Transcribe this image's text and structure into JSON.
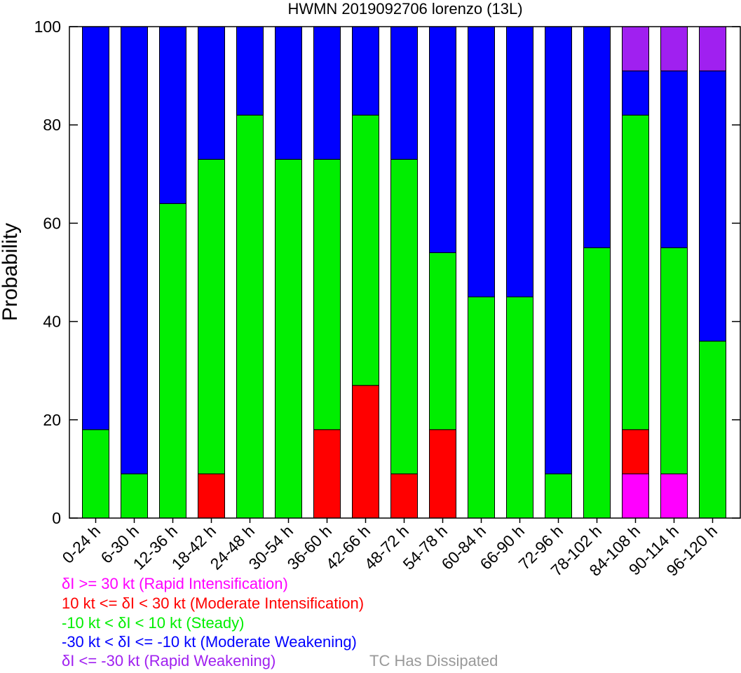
{
  "chart_data": {
    "type": "bar",
    "stacked": true,
    "title": "HWMN 2019092706 lorenzo (13L)",
    "ylabel": "Probability",
    "xlabel": "",
    "ylim": [
      0,
      100
    ],
    "yticks": [
      "0",
      "20",
      "40",
      "60",
      "80",
      "100"
    ],
    "grid": false,
    "legend_placement": "bottom",
    "categories": [
      "0-24 h",
      "6-30 h",
      "12-36 h",
      "18-42 h",
      "24-48 h",
      "30-54 h",
      "36-60 h",
      "42-66 h",
      "48-72 h",
      "54-78 h",
      "60-84 h",
      "66-90 h",
      "72-96 h",
      "78-102 h",
      "84-108 h",
      "90-114 h",
      "96-120 h"
    ],
    "series": [
      {
        "name": "δI >= 30 kt (Rapid Intensification)",
        "color": "#ff00ff",
        "values": [
          0,
          0,
          0,
          0,
          0,
          0,
          0,
          0,
          0,
          0,
          0,
          0,
          0,
          0,
          9,
          9,
          0
        ]
      },
      {
        "name": "10 kt <= δI < 30 kt (Moderate Intensification)",
        "color": "#ff0000",
        "values": [
          0,
          0,
          0,
          9,
          0,
          0,
          18,
          27,
          9,
          18,
          0,
          0,
          0,
          0,
          9,
          0,
          0
        ]
      },
      {
        "name": "-10 kt < δI < 10 kt (Steady)",
        "color": "#00ee00",
        "values": [
          18,
          9,
          64,
          64,
          82,
          73,
          55,
          55,
          64,
          36,
          45,
          45,
          9,
          55,
          64,
          46,
          36
        ]
      },
      {
        "name": "-30 kt < δI <= -10 kt (Moderate Weakening)",
        "color": "#0000ff",
        "values": [
          82,
          91,
          36,
          27,
          18,
          27,
          27,
          18,
          27,
          46,
          55,
          55,
          91,
          45,
          9,
          36,
          55
        ]
      },
      {
        "name": "δI <= -30 kt (Rapid Weakening)",
        "color": "#a020f0",
        "values": [
          0,
          0,
          0,
          0,
          0,
          0,
          0,
          0,
          0,
          0,
          0,
          0,
          0,
          0,
          9,
          9,
          9
        ]
      }
    ],
    "dissipated_label": "TC Has Dissipated",
    "dissipated_color": "#999999"
  }
}
